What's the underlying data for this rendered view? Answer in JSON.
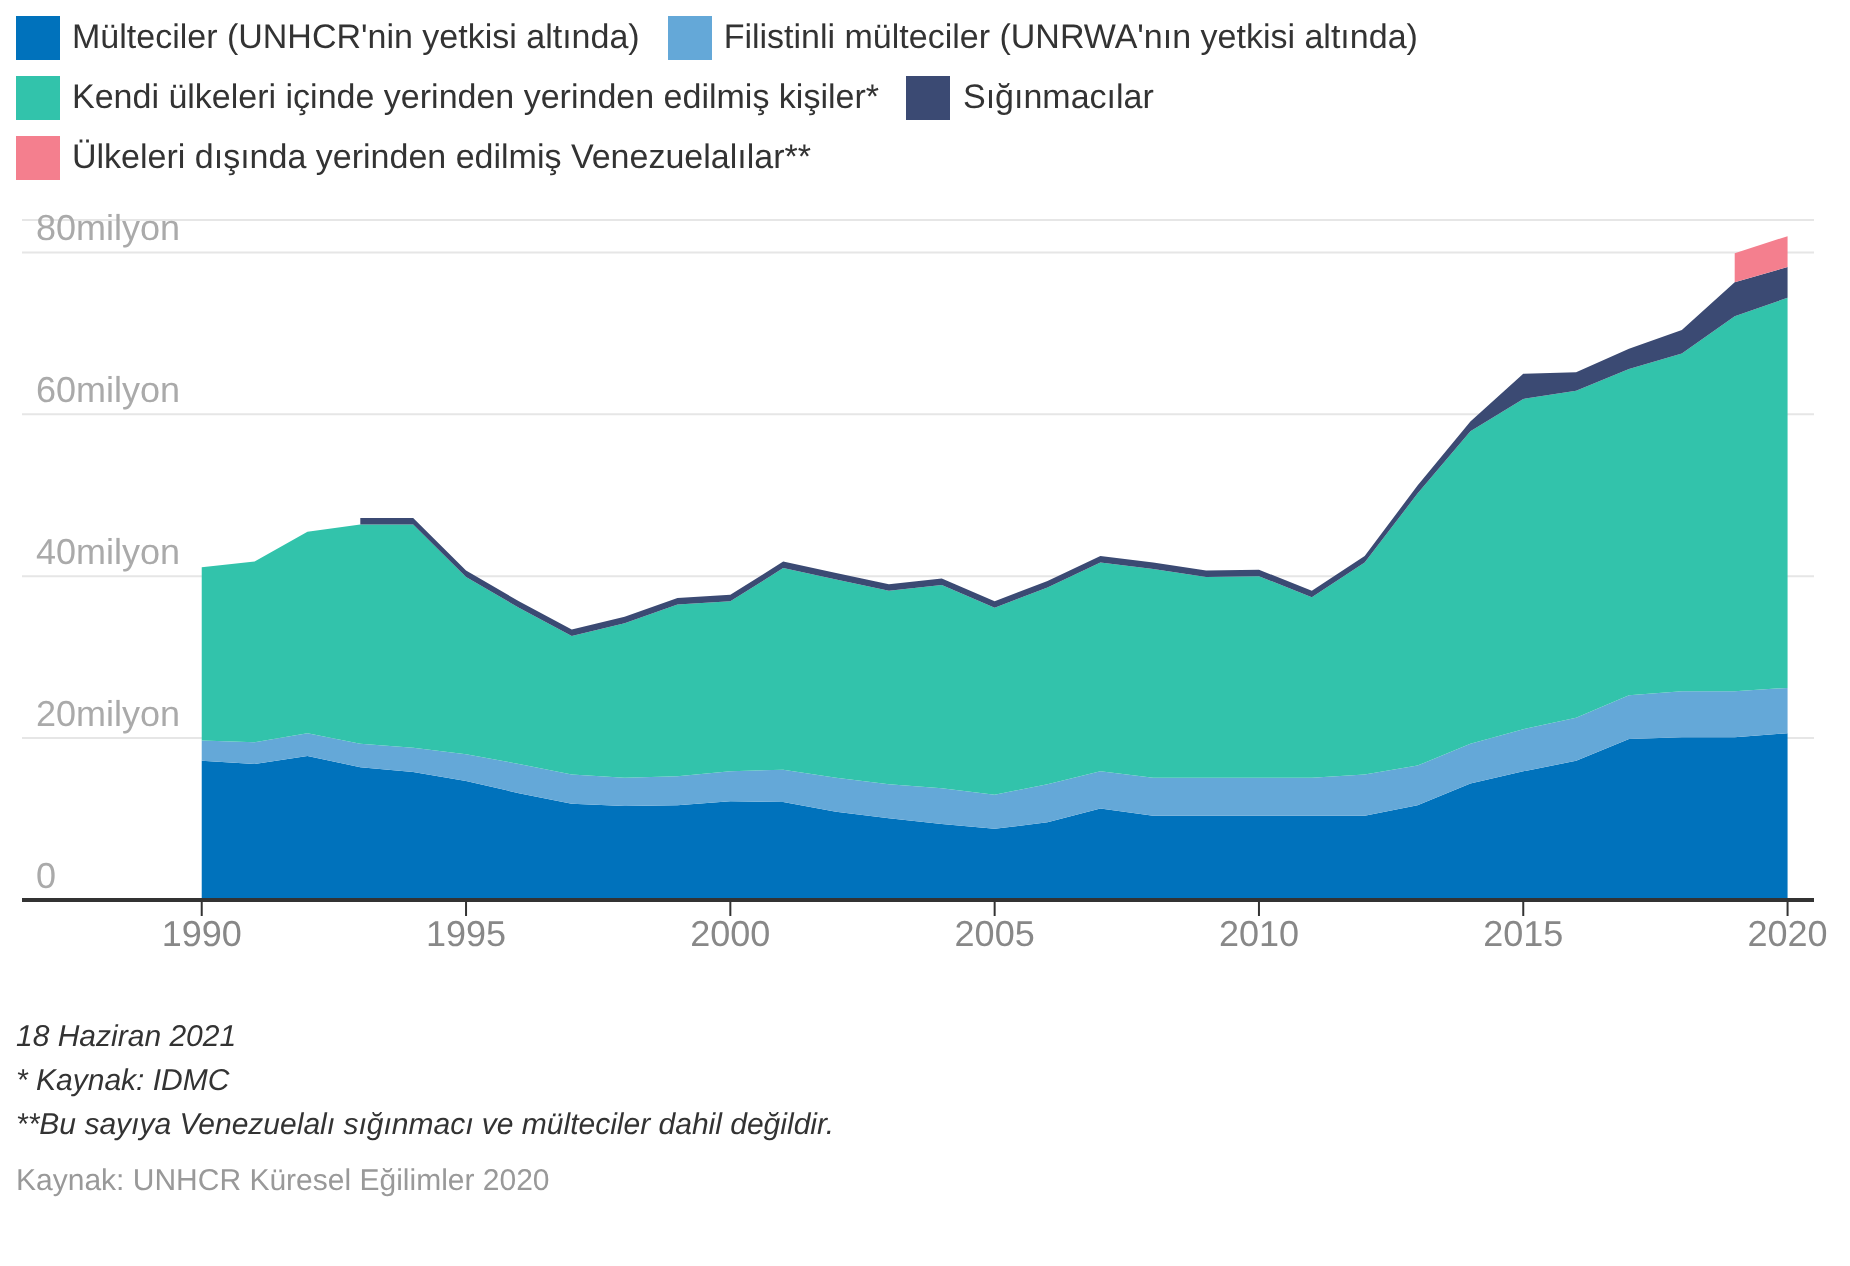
{
  "chart_data": {
    "type": "area",
    "stacked": true,
    "x": [
      1990,
      1991,
      1992,
      1993,
      1994,
      1995,
      1996,
      1997,
      1998,
      1999,
      2000,
      2001,
      2002,
      2003,
      2004,
      2005,
      2006,
      2007,
      2008,
      2009,
      2010,
      2011,
      2012,
      2013,
      2014,
      2015,
      2016,
      2017,
      2018,
      2019,
      2020
    ],
    "series": [
      {
        "name": "Mülteciler (UNHCR'nin yetkisi altında)",
        "color": "#0072bc",
        "values": [
          17.2,
          16.8,
          17.8,
          16.4,
          15.8,
          14.7,
          13.2,
          11.9,
          11.6,
          11.7,
          12.2,
          12.1,
          10.9,
          10.1,
          9.4,
          8.8,
          9.6,
          11.3,
          10.4,
          10.4,
          10.4,
          10.4,
          10.4,
          11.7,
          14.4,
          15.9,
          17.2,
          19.9,
          20.1,
          20.1,
          20.6
        ]
      },
      {
        "name": "Filistinli mülteciler (UNRWA'nın yetkisi altında)",
        "color": "#64a8d8",
        "values": [
          2.5,
          2.7,
          2.8,
          2.9,
          3.0,
          3.3,
          3.6,
          3.6,
          3.5,
          3.6,
          3.7,
          4.0,
          4.2,
          4.2,
          4.4,
          4.2,
          4.7,
          4.6,
          4.7,
          4.7,
          4.7,
          4.7,
          5.1,
          4.9,
          4.9,
          5.2,
          5.3,
          5.4,
          5.7,
          5.7,
          5.6
        ]
      },
      {
        "name": "Kendi ülkeleri içinde yerinden yerinden edilmiş kişiler*",
        "color": "#32c3ab",
        "values": [
          21.4,
          22.3,
          24.9,
          27.1,
          27.6,
          21.9,
          19.3,
          17.1,
          19.1,
          21.2,
          21.0,
          24.9,
          24.5,
          23.9,
          25.1,
          23.1,
          24.3,
          25.8,
          25.8,
          24.8,
          24.9,
          22.3,
          26.2,
          33.6,
          38.6,
          40.8,
          40.4,
          40.3,
          41.7,
          46.3,
          48.2
        ]
      },
      {
        "name": "Sığınmacılar",
        "color": "#3b4a73",
        "values": [
          null,
          null,
          null,
          0.8,
          0.8,
          0.8,
          0.8,
          0.8,
          0.8,
          0.8,
          0.8,
          0.8,
          0.8,
          0.8,
          0.8,
          0.8,
          0.8,
          0.8,
          0.8,
          0.8,
          0.8,
          0.8,
          0.8,
          1.0,
          1.2,
          3.1,
          2.3,
          2.5,
          2.9,
          4.2,
          3.8
        ]
      },
      {
        "name": "Ülkeleri dışında yerinden edilmiş Venezuelalılar**",
        "color": "#f47f8e",
        "values": [
          null,
          null,
          null,
          null,
          null,
          null,
          null,
          null,
          null,
          null,
          null,
          null,
          null,
          null,
          null,
          null,
          null,
          null,
          null,
          null,
          null,
          null,
          null,
          null,
          null,
          null,
          null,
          null,
          null,
          3.6,
          3.8
        ]
      }
    ],
    "xlim": [
      1986.6,
      2020.5
    ],
    "xticks": [
      1990,
      1995,
      2000,
      2005,
      2010,
      2015,
      2020
    ],
    "ylim": [
      0,
      84
    ],
    "yticks": [
      0,
      {
        "value": 20,
        "label": "20milyon"
      },
      {
        "value": 40,
        "label": "40milyon"
      },
      {
        "value": 60,
        "label": "60milyon"
      },
      {
        "value": 80,
        "label": "80milyon"
      }
    ],
    "grid": "y",
    "legend": "top",
    "annotations": [
      "18 Haziran 2021",
      "* Kaynak: IDMC",
      "**Bu sayıya Venezuelalı sığınmacı ve mülteciler dahil değildir.",
      "Kaynak: UNHCR Küresel Eğilimler 2020"
    ]
  }
}
